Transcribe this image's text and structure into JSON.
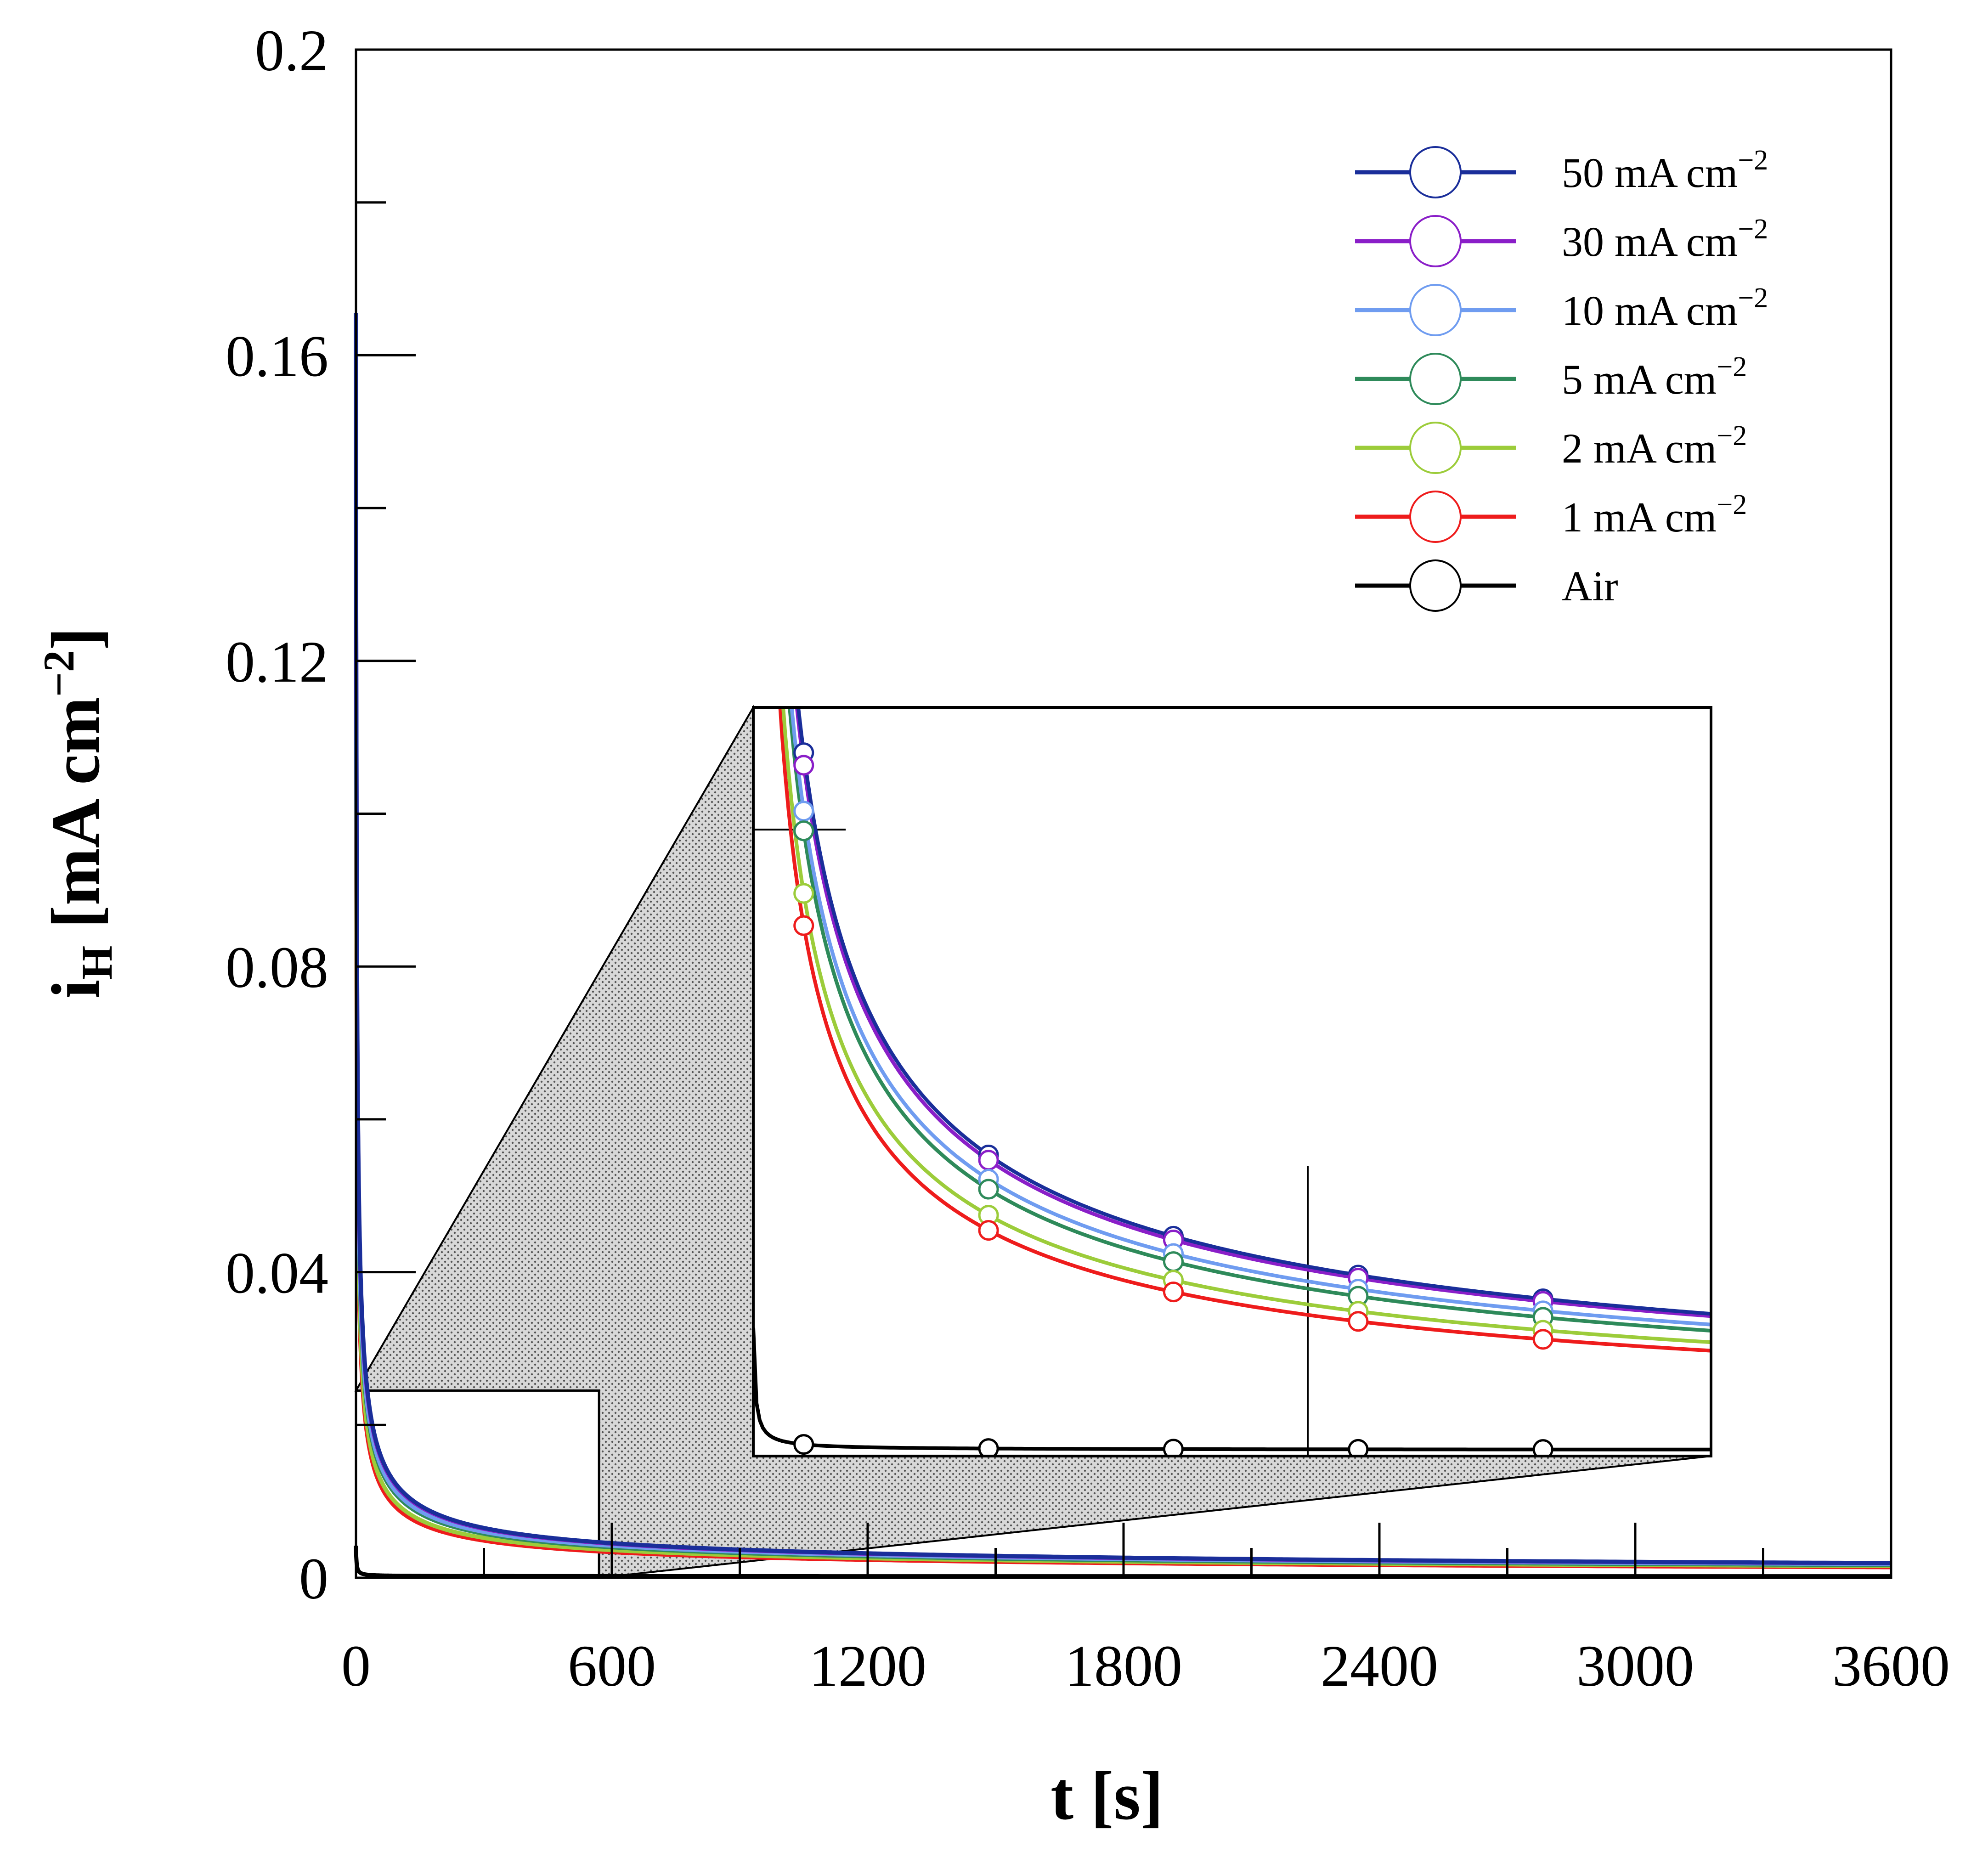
{
  "chart_data": {
    "type": "line",
    "title": "",
    "xlabel": "t [s]",
    "ylabel": {
      "main": "i",
      "sub": "H",
      "unit": " [mA cm",
      "exp": "−2",
      "close": "]"
    },
    "xlim": [
      0,
      3600
    ],
    "ylim": [
      0,
      0.2
    ],
    "x_ticks": [
      "0",
      "600",
      "1200",
      "1800",
      "2400",
      "3000",
      "3600"
    ],
    "x_tick_values": [
      0,
      600,
      1200,
      1800,
      2400,
      3000,
      3600
    ],
    "y_ticks": [
      "0",
      "0.04",
      "0.08",
      "0.12",
      "0.16",
      "0.2"
    ],
    "y_tick_values": [
      0,
      0.04,
      0.08,
      0.12,
      0.16,
      0.2
    ],
    "legend_position": "top-right",
    "series": [
      {
        "name": "50 mA cm",
        "exp": "−2",
        "color": "#1a2e9a",
        "amplitude": 0.165,
        "power": 0.58,
        "floor": 0.0005
      },
      {
        "name": "30 mA cm",
        "exp": "−2",
        "color": "#8a1ec8",
        "amplitude": 0.162,
        "power": 0.58,
        "floor": 0.0005
      },
      {
        "name": "10 mA cm",
        "exp": "−2",
        "color": "#6f9cf0",
        "amplitude": 0.151,
        "power": 0.58,
        "floor": 0.0005
      },
      {
        "name": "5 mA cm",
        "exp": "−2",
        "color": "#2e8a5a",
        "amplitude": 0.147,
        "power": 0.58,
        "floor": 0.0004
      },
      {
        "name": "2 mA cm",
        "exp": "−2",
        "color": "#9ccc3a",
        "amplitude": 0.132,
        "power": 0.58,
        "floor": 0.0004
      },
      {
        "name": "1 mA cm",
        "exp": "−2",
        "color": "#ee1c1c",
        "amplitude": 0.125,
        "power": 0.58,
        "floor": 0.0003
      },
      {
        "name": "Air",
        "exp": "",
        "color": "#000000",
        "amplitude": 0.004,
        "power": 0.9,
        "floor": 0.0002
      }
    ],
    "inset": {
      "x_range": [
        0,
        570
      ],
      "y_range": [
        0,
        0.0245
      ],
      "marker_times": [
        30,
        140,
        250,
        360,
        470
      ],
      "grid_y": 0.0205,
      "grid_x": 330
    }
  }
}
